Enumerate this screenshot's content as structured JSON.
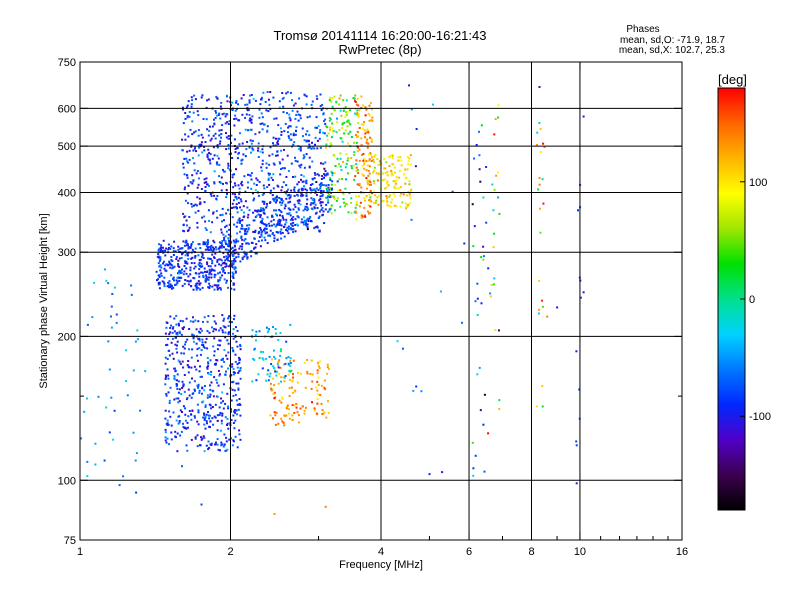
{
  "chart_data": {
    "type": "scatter",
    "title": "Tromsø 20141114 16:20:00-16:21:43",
    "subtitle": "RwPretec (8p)",
    "xlabel": "Frequency [MHz]",
    "ylabel": "Stationary phase Virtual Height [km]",
    "x_scale": "log",
    "y_scale": "log",
    "xlim": [
      1,
      16
    ],
    "ylim": [
      75,
      750
    ],
    "x_major_ticks": [
      1,
      2,
      4,
      6,
      8,
      10,
      16
    ],
    "y_major_ticks": [
      75,
      100,
      200,
      300,
      400,
      500,
      600,
      750
    ],
    "y_minor_ticks": [
      150
    ],
    "x_grid_lines": [
      2,
      4,
      6,
      8,
      10
    ],
    "y_grid_lines": [
      100,
      200,
      300,
      400,
      500,
      600
    ],
    "grid": true,
    "stats": {
      "heading": "Phases",
      "line_o": "mean, sd,O: -71.9, 18.7",
      "line_x": "mean, sd,X: 102.7, 25.3"
    },
    "colorbar": {
      "label": "[deg]",
      "range": [
        -180,
        180
      ],
      "ticks": [
        100,
        0,
        -100
      ],
      "colors": [
        "#000000",
        "#3b004f",
        "#5000c8",
        "#0028ff",
        "#0078ff",
        "#00d2ff",
        "#00e08c",
        "#00e000",
        "#a0e600",
        "#ffff00",
        "#ffb400",
        "#ff6400",
        "#ff0000"
      ]
    },
    "clusters": [
      {
        "name": "lower-cloud",
        "fmin": 1.48,
        "fmax": 2.1,
        "hmin": 115,
        "hmax": 222,
        "count": 520,
        "phase_mean": -85,
        "phase_sd": 22
      },
      {
        "name": "f-trace-lower",
        "fmin": 1.42,
        "fmax": 2.05,
        "hmin": 250,
        "hmax": 318,
        "count": 420,
        "phase_mean": -88,
        "phase_sd": 18
      },
      {
        "name": "f-trace-sloped",
        "fmin": 1.9,
        "fmax": 3.2,
        "hmin": 300,
        "hmax": 420,
        "count": 380,
        "phase_mean": -85,
        "phase_sd": 20
      },
      {
        "name": "upper-cloud-left",
        "fmin": 1.6,
        "fmax": 2.15,
        "hmin": 330,
        "hmax": 640,
        "count": 360,
        "phase_mean": -88,
        "phase_sd": 22
      },
      {
        "name": "upper-cloud-right",
        "fmin": 2.15,
        "fmax": 3.1,
        "hmin": 330,
        "hmax": 650,
        "count": 420,
        "phase_mean": -82,
        "phase_sd": 24
      },
      {
        "name": "x-mode-column-a",
        "fmin": 3.1,
        "fmax": 3.6,
        "hmin": 360,
        "hmax": 640,
        "count": 160,
        "phase_mean": 40,
        "phase_sd": 45
      },
      {
        "name": "x-mode-column-b",
        "fmin": 3.55,
        "fmax": 3.85,
        "hmin": 350,
        "hmax": 640,
        "count": 130,
        "phase_mean": 130,
        "phase_sd": 25
      },
      {
        "name": "x-mode-column-c",
        "fmin": 3.85,
        "fmax": 4.6,
        "hmin": 370,
        "hmax": 480,
        "count": 130,
        "phase_mean": 100,
        "phase_sd": 20
      },
      {
        "name": "x-mode-lower",
        "fmin": 2.4,
        "fmax": 3.15,
        "hmin": 130,
        "hmax": 180,
        "count": 130,
        "phase_mean": 130,
        "phase_sd": 20
      },
      {
        "name": "lower-cyan-patch",
        "fmin": 2.2,
        "fmax": 2.65,
        "hmin": 160,
        "hmax": 215,
        "count": 70,
        "phase_mean": -40,
        "phase_sd": 25
      },
      {
        "name": "left-scatter",
        "fmin": 1.0,
        "fmax": 1.35,
        "hmin": 90,
        "hmax": 290,
        "count": 45,
        "phase_mean": -50,
        "phase_sd": 20
      },
      {
        "name": "col-6.3",
        "fmin": 6.1,
        "fmax": 6.5,
        "hmin": 100,
        "hmax": 620,
        "count": 32,
        "phase_mean": -60,
        "phase_sd": 80
      },
      {
        "name": "col-6.8",
        "fmin": 6.55,
        "fmax": 6.9,
        "hmin": 110,
        "hmax": 630,
        "count": 24,
        "phase_mean": 60,
        "phase_sd": 90
      },
      {
        "name": "col-8.3",
        "fmin": 8.2,
        "fmax": 8.5,
        "hmin": 130,
        "hmax": 640,
        "count": 22,
        "phase_mean": 90,
        "phase_sd": 60
      },
      {
        "name": "col-9.9",
        "fmin": 9.7,
        "fmax": 10.2,
        "hmin": 95,
        "hmax": 610,
        "count": 14,
        "phase_mean": -80,
        "phase_sd": 20
      },
      {
        "name": "sparse-mid",
        "fmin": 4.3,
        "fmax": 6.0,
        "hmin": 100,
        "hmax": 660,
        "count": 14,
        "phase_mean": -70,
        "phase_sd": 30
      }
    ],
    "isolated_points": [
      {
        "x": 2.45,
        "y": 85,
        "phase": 130
      },
      {
        "x": 3.1,
        "y": 88,
        "phase": 140
      },
      {
        "x": 1.75,
        "y": 89,
        "phase": -80
      },
      {
        "x": 1.12,
        "y": 110,
        "phase": -80
      },
      {
        "x": 1.6,
        "y": 107,
        "phase": -70
      },
      {
        "x": 5.0,
        "y": 103,
        "phase": -90
      },
      {
        "x": 5.3,
        "y": 104,
        "phase": -95
      },
      {
        "x": 9.0,
        "y": 230,
        "phase": -100
      },
      {
        "x": 8.6,
        "y": 220,
        "phase": 140
      },
      {
        "x": 4.55,
        "y": 670,
        "phase": -100
      },
      {
        "x": 8.3,
        "y": 665,
        "phase": -110
      }
    ]
  }
}
